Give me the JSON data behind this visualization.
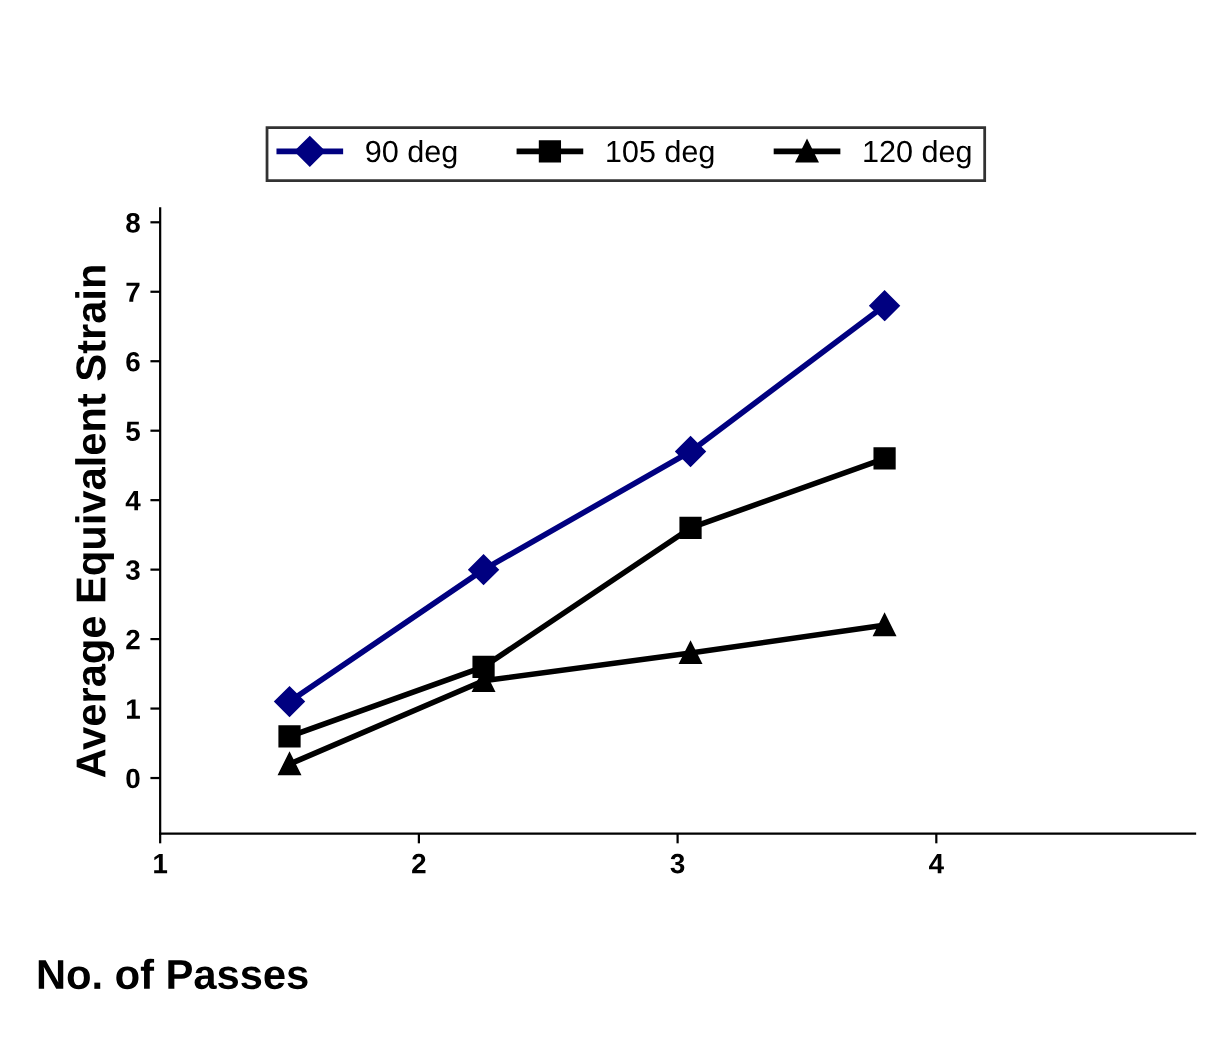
{
  "chart_data": {
    "type": "line",
    "xlabel": "No. of Passes",
    "ylabel": "Average Equivalent Strain",
    "x": [
      1.5,
      2.25,
      3.05,
      3.8
    ],
    "series": [
      {
        "name": "90 deg",
        "color": "#000080",
        "marker": "diamond",
        "values": [
          1.1,
          3.0,
          4.7,
          6.8
        ]
      },
      {
        "name": "105 deg",
        "color": "#000000",
        "marker": "square",
        "values": [
          0.6,
          1.6,
          3.6,
          4.6
        ]
      },
      {
        "name": "120 deg",
        "color": "#000000",
        "marker": "triangle",
        "values": [
          0.2,
          1.4,
          1.8,
          2.2
        ]
      }
    ],
    "xlim": [
      1,
      5
    ],
    "xticks": [
      1,
      2,
      3,
      4
    ],
    "ylim": [
      -0.8,
      8.2
    ],
    "yticks": [
      0,
      1,
      2,
      3,
      4,
      5,
      6,
      7,
      8
    ],
    "grid": false,
    "legend": "top",
    "line_style": "solid"
  }
}
